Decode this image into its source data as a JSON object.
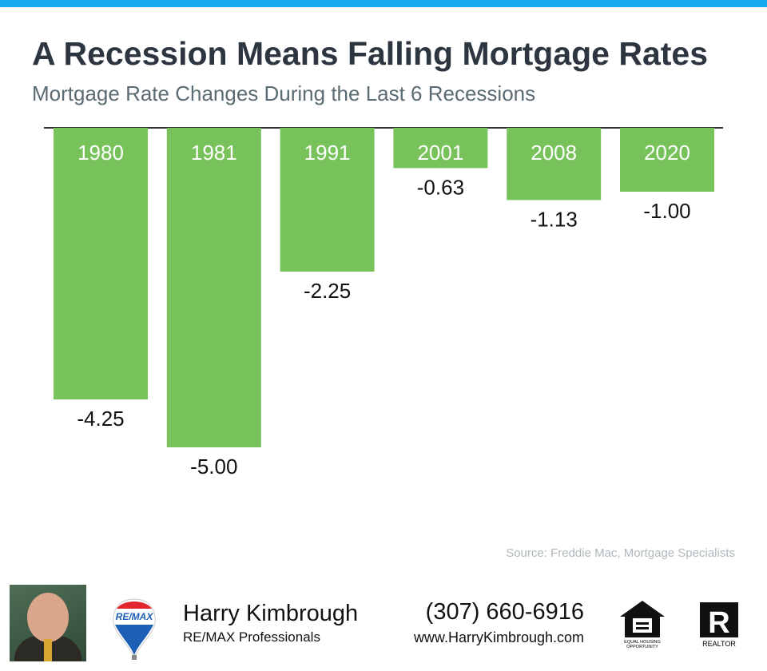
{
  "header": {
    "title": "A Recession Means Falling Mortgage Rates",
    "subtitle": "Mortgage Rate Changes During the Last 6 Recessions"
  },
  "chart_data": {
    "type": "bar",
    "title": "A Recession Means Falling Mortgage Rates",
    "subtitle": "Mortgage Rate Changes During the Last 6 Recessions",
    "categories": [
      "1980",
      "1981",
      "1991",
      "2001",
      "2008",
      "2020"
    ],
    "values": [
      -4.25,
      -5.0,
      -2.25,
      -0.63,
      -1.13,
      -1.0
    ],
    "labels": [
      "-4.25",
      "-5.00",
      "-2.25",
      "-0.63",
      "-1.13",
      "-1.00"
    ],
    "xlabel": "",
    "ylabel": "",
    "ylim": [
      -5,
      0
    ],
    "grid": false,
    "bar_color": "#77c25a"
  },
  "source": "Source: Freddie Mac, Mortgage Specialists",
  "footer": {
    "name": "Harry Kimbrough",
    "company": "RE/MAX Professionals",
    "phone": "(307) 660-6916",
    "website": "www.HarryKimbrough.com",
    "remax_logo_text": "RE/MAX",
    "eho_text": "EQUAL HOUSING OPPORTUNITY",
    "realtor_text": "REALTOR"
  },
  "colors": {
    "accent": "#14aaee",
    "title": "#2d3640",
    "subtitle": "#5b6b73"
  }
}
